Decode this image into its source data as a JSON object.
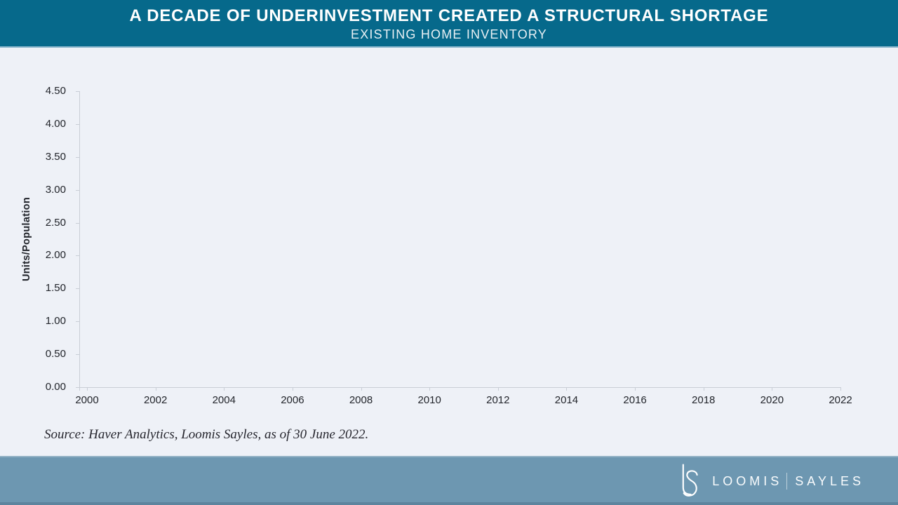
{
  "header": {
    "title": "A DECADE OF UNDERINVESTMENT CREATED A STRUCTURAL SHORTAGE",
    "subtitle": "EXISTING HOME INVENTORY"
  },
  "chart_data": {
    "type": "line",
    "title": "EXISTING HOME INVENTORY",
    "xlabel": "",
    "ylabel": "Units/Population",
    "x_ticks": [
      "2000",
      "2002",
      "2004",
      "2006",
      "2008",
      "2010",
      "2012",
      "2014",
      "2016",
      "2018",
      "2020",
      "2022"
    ],
    "y_ticks": [
      "0.00",
      "0.50",
      "1.00",
      "1.50",
      "2.00",
      "2.50",
      "3.00",
      "3.50",
      "4.00",
      "4.50"
    ],
    "xlim": [
      2000,
      2022
    ],
    "ylim": [
      0,
      4.5
    ],
    "grid": false,
    "legend": "none",
    "series": []
  },
  "source": {
    "text": "Source: Haver Analytics, Loomis Sayles, as of 30 June 2022."
  },
  "footer": {
    "monogram": "LS",
    "brand_left": "LOOMIS",
    "brand_right": "SAYLES"
  },
  "colors": {
    "header_bg": "#06698B",
    "footer_bg": "#6D97B1",
    "page_bg": "#EEF1F7",
    "axis_line": "#C9CED6",
    "tick_text": "#22252B",
    "title_text": "#FFFFFF",
    "subtitle_text": "#E8F0F4",
    "source_text": "#26262E",
    "logo_text": "#FAFCFD"
  }
}
